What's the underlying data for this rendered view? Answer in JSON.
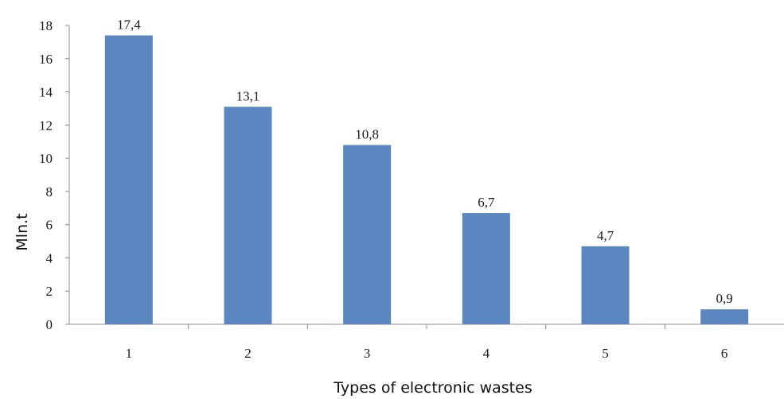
{
  "chart_data": {
    "type": "bar",
    "categories": [
      "1",
      "2",
      "3",
      "4",
      "5",
      "6"
    ],
    "values": [
      17.4,
      13.1,
      10.8,
      6.7,
      4.7,
      0.9
    ],
    "data_labels": [
      "17,4",
      "13,1",
      "10,8",
      "6,7",
      "4,7",
      "0,9"
    ],
    "yticks": [
      0,
      2,
      4,
      6,
      8,
      10,
      12,
      14,
      16,
      18
    ],
    "ylim": [
      0,
      18
    ],
    "xlabel": "Types of electronic wastes",
    "ylabel": "Mln.t",
    "grid": false,
    "legend": "none",
    "bar_color": "#5b87c0"
  }
}
